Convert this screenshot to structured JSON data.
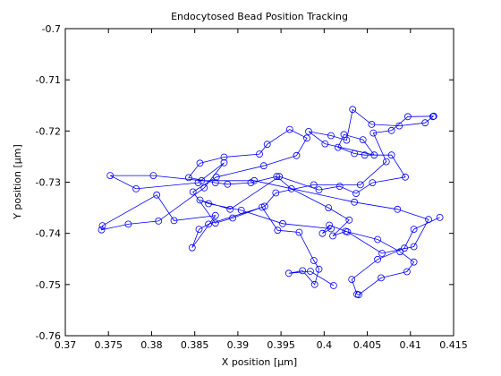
{
  "chart_data": {
    "type": "line",
    "title": "Endocytosed Bead Position Tracking",
    "xlabel": "X position [μm]",
    "ylabel": "Y position [μm]",
    "xlim": [
      0.37,
      0.415
    ],
    "ylim": [
      -0.76,
      -0.7
    ],
    "x_ticks": [
      0.37,
      0.375,
      0.38,
      0.385,
      0.39,
      0.395,
      0.4,
      0.405,
      0.41,
      0.415
    ],
    "x_tick_labels": [
      "0.37",
      "0.375",
      "0.38",
      "0.385",
      "0.39",
      "0.395",
      "0.4",
      "0.405",
      "0.41",
      "0.415"
    ],
    "y_ticks": [
      -0.76,
      -0.75,
      -0.74,
      -0.73,
      -0.72,
      -0.71,
      -0.7
    ],
    "y_tick_labels": [
      "-0.76",
      "-0.75",
      "-0.74",
      "-0.73",
      "-0.72",
      "-0.71",
      "-0.7"
    ],
    "grid": false,
    "marker": "circle",
    "line_color": "#0000ff",
    "series": [
      {
        "x": [
          0.4011,
          0.3984,
          0.3959,
          0.3975,
          0.3989,
          0.3994,
          0.3988,
          0.3971,
          0.3946,
          0.3928,
          0.3866,
          0.3855,
          0.3847,
          0.3874,
          0.3826,
          0.3806,
          0.3743,
          0.3742,
          0.3773,
          0.3808,
          0.3861,
          0.3884,
          0.3854,
          0.3782,
          0.3752,
          0.3802,
          0.3858,
          0.3919,
          0.4035,
          0.4085,
          0.4121,
          0.4104,
          0.4067,
          0.4027,
          0.4006,
          0.3998,
          0.4008,
          0.3952,
          0.3904,
          0.3866,
          0.3856,
          0.3891,
          0.3948,
          0.3994,
          0.4018,
          0.4037,
          0.4056,
          0.4094,
          0.4078,
          0.4047,
          0.4035,
          0.4016,
          0.4023,
          0.4045,
          0.4058,
          0.4001,
          0.3982,
          0.4008,
          0.4026,
          0.4033,
          0.4055,
          0.4087,
          0.4117,
          0.4126,
          0.4127,
          0.4097,
          0.4078,
          0.4057,
          0.4072,
          0.4042,
          0.3988,
          0.3944,
          0.3931,
          0.3894,
          0.3874,
          0.3848,
          0.3875,
          0.393,
          0.3968,
          0.398,
          0.396,
          0.3934,
          0.3925,
          0.3884,
          0.3856,
          0.3843,
          0.3874,
          0.3888,
          0.3915,
          0.3945,
          0.3962,
          0.4005,
          0.4029,
          0.401,
          0.4025,
          0.4062,
          0.4088,
          0.4104,
          0.4096,
          0.4066,
          0.404,
          0.4038,
          0.4032,
          0.4062,
          0.4093,
          0.4104,
          0.4134
        ],
        "y": [
          -0.7502,
          -0.7474,
          -0.7478,
          -0.7473,
          -0.75,
          -0.747,
          -0.7453,
          -0.7398,
          -0.7394,
          -0.7349,
          -0.7382,
          -0.7392,
          -0.7428,
          -0.7365,
          -0.7375,
          -0.7325,
          -0.7385,
          -0.7393,
          -0.7382,
          -0.7376,
          -0.7311,
          -0.7262,
          -0.7301,
          -0.7313,
          -0.7287,
          -0.7287,
          -0.7297,
          -0.7297,
          -0.7339,
          -0.7353,
          -0.7373,
          -0.7426,
          -0.7439,
          -0.7397,
          -0.7384,
          -0.74,
          -0.7391,
          -0.7381,
          -0.7355,
          -0.7342,
          -0.7335,
          -0.7353,
          -0.7289,
          -0.7315,
          -0.7308,
          -0.7322,
          -0.7301,
          -0.729,
          -0.7247,
          -0.7247,
          -0.7244,
          -0.7232,
          -0.7207,
          -0.7217,
          -0.7247,
          -0.7225,
          -0.7201,
          -0.7209,
          -0.7218,
          -0.7158,
          -0.7187,
          -0.719,
          -0.7184,
          -0.7172,
          -0.7171,
          -0.7172,
          -0.7199,
          -0.7204,
          -0.726,
          -0.7305,
          -0.7305,
          -0.7321,
          -0.7347,
          -0.737,
          -0.738,
          -0.7319,
          -0.729,
          -0.7268,
          -0.7248,
          -0.7214,
          -0.7197,
          -0.7226,
          -0.7245,
          -0.7251,
          -0.7263,
          -0.7291,
          -0.7301,
          -0.7304,
          -0.7301,
          -0.7289,
          -0.7313,
          -0.735,
          -0.7374,
          -0.7405,
          -0.7396,
          -0.7412,
          -0.7436,
          -0.7456,
          -0.7475,
          -0.7487,
          -0.752,
          -0.7519,
          -0.749,
          -0.7451,
          -0.7429,
          -0.7392,
          -0.7369
        ]
      }
    ]
  }
}
